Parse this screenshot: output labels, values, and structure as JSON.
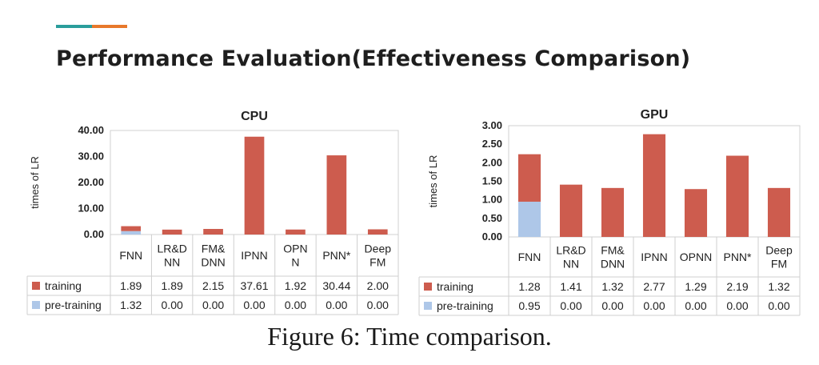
{
  "slide": {
    "title": "Performance Evaluation(Effectiveness Comparison)",
    "caption": "Figure 6: Time comparison.",
    "accent_colors": [
      "#2a9d9b",
      "#e8782b"
    ]
  },
  "chart_data": [
    {
      "type": "bar",
      "stacked": true,
      "title": "CPU",
      "ylabel": "times of LR",
      "xlabel": "",
      "ylim": [
        0,
        40
      ],
      "yticks": [
        "0.00",
        "10.00",
        "20.00",
        "30.00",
        "40.00"
      ],
      "categories": [
        [
          "FNN"
        ],
        [
          "LR&D",
          "NN"
        ],
        [
          "FM&",
          "DNN"
        ],
        [
          "IPNN"
        ],
        [
          "OPN",
          "N"
        ],
        [
          "PNN*"
        ],
        [
          "Deep",
          "FM"
        ]
      ],
      "series": [
        {
          "name": "pre-training",
          "color": "#aec7e8",
          "values": [
            1.32,
            0.0,
            0.0,
            0.0,
            0.0,
            0.0,
            0.0
          ],
          "labels": [
            "1.32",
            "0.00",
            "0.00",
            "0.00",
            "0.00",
            "0.00",
            "0.00"
          ]
        },
        {
          "name": "training",
          "color": "#cd5c4e",
          "values": [
            1.89,
            1.89,
            2.15,
            37.61,
            1.92,
            30.44,
            2.0
          ],
          "labels": [
            "1.89",
            "1.89",
            "2.15",
            "37.61",
            "1.92",
            "30.44",
            "2.00"
          ]
        }
      ],
      "table_row_order": [
        "training",
        "pre-training"
      ],
      "grid": false,
      "legend": "data-table"
    },
    {
      "type": "bar",
      "stacked": true,
      "title": "GPU",
      "ylabel": "times of LR",
      "xlabel": "",
      "ylim": [
        0,
        3
      ],
      "yticks": [
        "0.00",
        "0.50",
        "1.00",
        "1.50",
        "2.00",
        "2.50",
        "3.00"
      ],
      "categories": [
        [
          "FNN"
        ],
        [
          "LR&D",
          "NN"
        ],
        [
          "FM&",
          "DNN"
        ],
        [
          "IPNN"
        ],
        [
          "OPNN"
        ],
        [
          "PNN*"
        ],
        [
          "Deep",
          "FM"
        ]
      ],
      "series": [
        {
          "name": "pre-training",
          "color": "#aec7e8",
          "values": [
            0.95,
            0.0,
            0.0,
            0.0,
            0.0,
            0.0,
            0.0
          ],
          "labels": [
            "0.95",
            "0.00",
            "0.00",
            "0.00",
            "0.00",
            "0.00",
            "0.00"
          ]
        },
        {
          "name": "training",
          "color": "#cd5c4e",
          "values": [
            1.28,
            1.41,
            1.32,
            2.77,
            1.29,
            2.19,
            1.32
          ],
          "labels": [
            "1.28",
            "1.41",
            "1.32",
            "2.77",
            "1.29",
            "2.19",
            "1.32"
          ]
        }
      ],
      "table_row_order": [
        "training",
        "pre-training"
      ],
      "grid": false,
      "legend": "data-table"
    }
  ]
}
